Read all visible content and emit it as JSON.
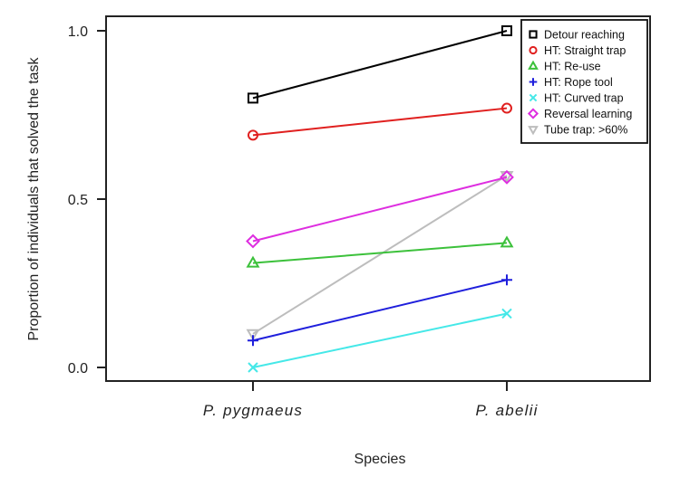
{
  "chart_data": {
    "type": "line",
    "title": "",
    "xlabel": "Species",
    "ylabel": "Proportion of individuals that solved the task",
    "categories": [
      "P. pygmaeus",
      "P. abelii"
    ],
    "ylim": [
      0.0,
      1.0
    ],
    "yticks": [
      0.0,
      0.5,
      1.0
    ],
    "ytick_labels": [
      "0.0",
      "0.5",
      "1.0"
    ],
    "grid": false,
    "legend_position": "top-right",
    "series": [
      {
        "name": "Detour reaching",
        "values": [
          0.8,
          1.0
        ],
        "color": "#000000",
        "marker": "square"
      },
      {
        "name": "HT: Straight trap",
        "values": [
          0.69,
          0.77
        ],
        "color": "#e0201f",
        "marker": "circle"
      },
      {
        "name": "HT: Re-use",
        "values": [
          0.31,
          0.37
        ],
        "color": "#3cc13b",
        "marker": "triangle-up"
      },
      {
        "name": "HT: Rope tool",
        "values": [
          0.08,
          0.26
        ],
        "color": "#1f1fdc",
        "marker": "plus"
      },
      {
        "name": "HT: Curved trap",
        "values": [
          0.0,
          0.16
        ],
        "color": "#45e8e8",
        "marker": "cross"
      },
      {
        "name": "Reversal learning",
        "values": [
          0.375,
          0.565
        ],
        "color": "#de2ee0",
        "marker": "diamond"
      },
      {
        "name": "Tube trap: >60%",
        "values": [
          0.1,
          0.57
        ],
        "color": "#bdbdbd",
        "marker": "triangle-down"
      }
    ]
  }
}
